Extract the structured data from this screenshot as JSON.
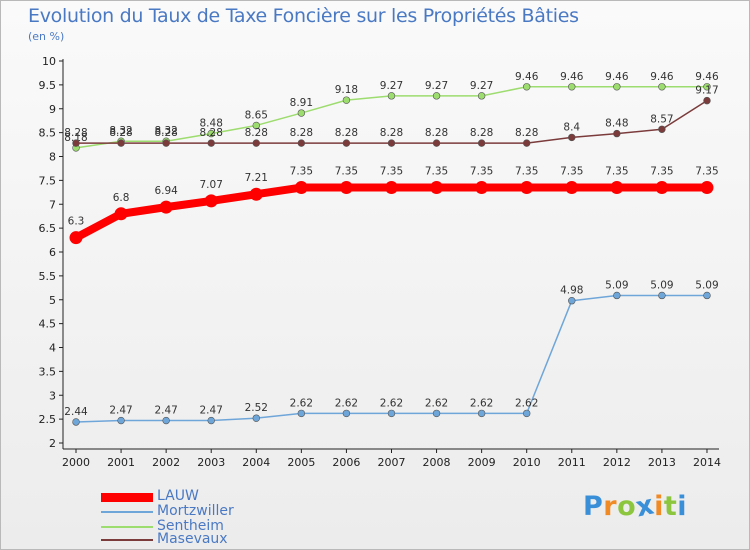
{
  "chart_data": {
    "type": "line",
    "title": "Evolution du Taux de Taxe Foncière sur les Propriétés Bâties",
    "subtitle": "(en %)",
    "xlabel": "",
    "ylabel": "",
    "categories": [
      "2000",
      "2001",
      "2002",
      "2003",
      "2004",
      "2005",
      "2006",
      "2007",
      "2008",
      "2009",
      "2010",
      "2011",
      "2012",
      "2013",
      "2014"
    ],
    "ylim": [
      2,
      10
    ],
    "yticks": [
      "2",
      "2.5",
      "3",
      "3.5",
      "4",
      "4.5",
      "5",
      "5.5",
      "6",
      "6.5",
      "7",
      "7.5",
      "8",
      "8.5",
      "9",
      "9.5",
      "10"
    ],
    "grid": false,
    "legend_position": "bottom-left",
    "series": [
      {
        "name": "LAUW",
        "color": "#ff0000",
        "values": [
          6.3,
          6.8,
          6.94,
          7.07,
          7.21,
          7.35,
          7.35,
          7.35,
          7.35,
          7.35,
          7.35,
          7.35,
          7.35,
          7.35,
          7.35
        ],
        "labels": [
          "6.3",
          "6.8",
          "6.94",
          "7.07",
          "7.21",
          "7.35",
          "7.35",
          "7.35",
          "7.35",
          "7.35",
          "7.35",
          "7.35",
          "7.35",
          "7.35",
          "7.35"
        ]
      },
      {
        "name": "Mortzwiller",
        "color": "#6fa6d9",
        "values": [
          2.44,
          2.47,
          2.47,
          2.47,
          2.52,
          2.62,
          2.62,
          2.62,
          2.62,
          2.62,
          2.62,
          4.98,
          5.09,
          5.09,
          5.09
        ],
        "labels": [
          "2.44",
          "2.47",
          "2.47",
          "2.47",
          "2.52",
          "2.62",
          "2.62",
          "2.62",
          "2.62",
          "2.62",
          "2.62",
          "4.98",
          "5.09",
          "5.09",
          "5.09"
        ]
      },
      {
        "name": "Sentheim",
        "color": "#9ddc6e",
        "values": [
          8.18,
          8.32,
          8.32,
          8.48,
          8.65,
          8.91,
          9.18,
          9.27,
          9.27,
          9.27,
          9.46,
          9.46,
          9.46,
          9.46,
          9.46
        ],
        "labels": [
          "8.18",
          "8.32",
          "8.32",
          "8.48",
          "8.65",
          "8.91",
          "9.18",
          "9.27",
          "9.27",
          "9.27",
          "9.46",
          "9.46",
          "9.46",
          "9.46",
          "9.46"
        ]
      },
      {
        "name": "Masevaux",
        "color": "#7b3b3b",
        "values": [
          8.28,
          8.28,
          8.28,
          8.28,
          8.28,
          8.28,
          8.28,
          8.28,
          8.28,
          8.28,
          8.28,
          8.4,
          8.48,
          8.57,
          9.17
        ],
        "labels": [
          "8.28",
          "8.28",
          "8.28",
          "8.28",
          "8.28",
          "8.28",
          "8.28",
          "8.28",
          "8.28",
          "8.28",
          "8.28",
          "8.4",
          "8.48",
          "8.57",
          "9.17"
        ]
      }
    ]
  },
  "branding": {
    "logo_text": "Proxiti",
    "letter_colors": [
      "#3a8fd9",
      "#f08a24",
      "#8cc63f",
      "#3a8fd9",
      "#f08a24",
      "#8cc63f",
      "#3a8fd9"
    ]
  }
}
